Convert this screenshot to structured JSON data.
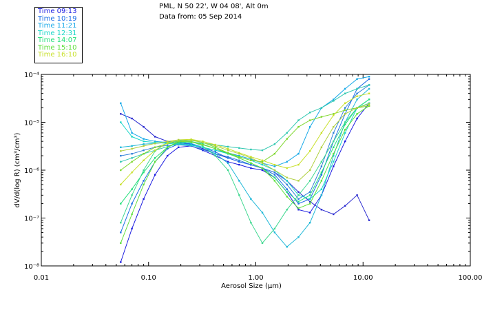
{
  "header": {
    "station": "PML, N 50 22', W 04 08', Alt 0m",
    "date": "Data from: 05 Sep 2014"
  },
  "legend": [
    {
      "label": "Time 09:13",
      "color": "#1a1ae0"
    },
    {
      "label": "Time 10:19",
      "color": "#1a6ee6"
    },
    {
      "label": "Time 11:21",
      "color": "#17a9e8"
    },
    {
      "label": "Time 12:31",
      "color": "#19d6c8"
    },
    {
      "label": "Time 14:07",
      "color": "#22e07a"
    },
    {
      "label": "Time 15:10",
      "color": "#5fe03c"
    },
    {
      "label": "Time 16:10",
      "color": "#c8e02a"
    }
  ],
  "chart_data": {
    "type": "line",
    "xscale": "log",
    "yscale": "log",
    "xlabel": "Aerosol Size (µm)",
    "ylabel": "dV/d(log R) (cm³/cm³)",
    "xlim": [
      0.01,
      100
    ],
    "ylim": [
      1e-08,
      0.0001
    ],
    "xticks": [
      {
        "value": 0.01,
        "label": "0.01"
      },
      {
        "value": 0.1,
        "label": "0.10"
      },
      {
        "value": 1,
        "label": "1.00"
      },
      {
        "value": 10,
        "label": "10.00"
      },
      {
        "value": 100,
        "label": "100.00"
      }
    ],
    "yticks": [
      {
        "value": 1e-08,
        "label": "10⁻⁸"
      },
      {
        "value": 1e-07,
        "label": "10⁻⁷"
      },
      {
        "value": 1e-06,
        "label": "10⁻⁶"
      },
      {
        "value": 1e-05,
        "label": "10⁻⁵"
      },
      {
        "value": 0.0001,
        "label": "10⁻⁴"
      }
    ],
    "x": [
      0.055,
      0.07,
      0.09,
      0.115,
      0.15,
      0.19,
      0.25,
      0.32,
      0.42,
      0.55,
      0.7,
      0.9,
      1.15,
      1.5,
      1.95,
      2.5,
      3.2,
      4.1,
      5.3,
      6.8,
      8.8,
      11.4
    ],
    "series": [
      {
        "name": "Time 09:13",
        "color": "#1a1ae0",
        "values": [
          1.2e-08,
          6e-08,
          2.5e-07,
          8e-07,
          2e-06,
          3e-06,
          3.2e-06,
          2.6e-06,
          2e-06,
          1.5e-06,
          1.3e-06,
          1.1e-06,
          1e-06,
          7e-07,
          3.5e-07,
          1.5e-07,
          1.3e-07,
          3e-07,
          1.2e-06,
          4e-06,
          1.2e-05,
          2.5e-05
        ]
      },
      {
        "name": "Time 09:13",
        "color": "#2a2ad0",
        "values": [
          1.5e-05,
          1.2e-05,
          8e-06,
          5e-06,
          4e-06,
          3.8e-06,
          3.5e-06,
          2.8e-06,
          2.2e-06,
          1.8e-06,
          1.5e-06,
          1.3e-06,
          1.1e-06,
          9e-07,
          6e-07,
          3.5e-07,
          2.2e-07,
          1.5e-07,
          1.2e-07,
          1.8e-07,
          3e-07,
          9e-08
        ]
      },
      {
        "name": "Time 10:19",
        "color": "#1a6ee6",
        "values": [
          5e-08,
          2e-07,
          6e-07,
          1.5e-06,
          2.8e-06,
          3.5e-06,
          3.6e-06,
          3e-06,
          2.4e-06,
          1.8e-06,
          1.5e-06,
          1.3e-06,
          1.1e-06,
          8e-07,
          4e-07,
          2e-07,
          2.5e-07,
          8e-07,
          4e-06,
          1.5e-05,
          5e-05,
          8e-05
        ]
      },
      {
        "name": "Time 10:19",
        "color": "#2f80d8",
        "values": [
          2e-06,
          2.2e-06,
          2.6e-06,
          3e-06,
          3.3e-06,
          3.4e-06,
          3.2e-06,
          2.7e-06,
          2.2e-06,
          1.9e-06,
          1.6e-06,
          1.3e-06,
          1.1e-06,
          9e-07,
          5e-07,
          2.5e-07,
          3.5e-07,
          1.2e-06,
          6e-06,
          2e-05,
          4e-05,
          6e-05
        ]
      },
      {
        "name": "Time 11:21",
        "color": "#17a9e8",
        "values": [
          2.5e-05,
          6e-06,
          4.5e-06,
          4e-06,
          3.8e-06,
          3.6e-06,
          3.4e-06,
          3e-06,
          2.6e-06,
          2.3e-06,
          2e-06,
          1.7e-06,
          1.4e-06,
          1.2e-06,
          1.5e-06,
          2.2e-06,
          8e-06,
          2e-05,
          3e-05,
          5e-05,
          8e-05,
          9e-05
        ]
      },
      {
        "name": "Time 11:21",
        "color": "#20b8d8",
        "values": [
          3e-06,
          3.2e-06,
          3.5e-06,
          3.6e-06,
          3.8e-06,
          4e-06,
          3.6e-06,
          3e-06,
          2.2e-06,
          1.4e-06,
          6e-07,
          2.5e-07,
          1.3e-07,
          5e-08,
          2.5e-08,
          4e-08,
          8e-08,
          3e-07,
          2e-06,
          1e-05,
          3e-05,
          5e-05
        ]
      },
      {
        "name": "Time 12:31",
        "color": "#19d6c8",
        "values": [
          1e-05,
          5e-06,
          4e-06,
          3.8e-06,
          3.6e-06,
          3.5e-06,
          3.3e-06,
          3e-06,
          2.6e-06,
          2.2e-06,
          1.9e-06,
          1.6e-06,
          1.3e-06,
          1e-06,
          6e-07,
          3e-07,
          2.5e-07,
          4e-07,
          1.5e-06,
          6e-06,
          2e-05,
          3e-05
        ]
      },
      {
        "name": "Time 12:31",
        "color": "#30c8b0",
        "values": [
          1.5e-06,
          1.8e-06,
          2.2e-06,
          2.6e-06,
          3.1e-06,
          3.6e-06,
          3.8e-06,
          3.7e-06,
          3.4e-06,
          3.1e-06,
          2.9e-06,
          2.7e-06,
          2.6e-06,
          3.5e-06,
          6e-06,
          1.1e-05,
          1.6e-05,
          2e-05,
          2.8e-05,
          4e-05,
          5e-05,
          6e-05
        ]
      },
      {
        "name": "Time 14:07",
        "color": "#22e07a",
        "values": [
          2e-07,
          4e-07,
          9e-07,
          1.8e-06,
          3e-06,
          3.8e-06,
          4e-06,
          3.5e-06,
          2.8e-06,
          2.2e-06,
          1.8e-06,
          1.4e-06,
          1.1e-06,
          7e-07,
          3.5e-07,
          2.2e-07,
          3e-07,
          9e-07,
          3e-06,
          9e-06,
          2e-05,
          3e-05
        ]
      },
      {
        "name": "Time 14:07",
        "color": "#3fd890",
        "values": [
          8e-08,
          3e-07,
          1e-06,
          2.5e-06,
          3.8e-06,
          4.2e-06,
          4e-06,
          3.2e-06,
          2e-06,
          1e-06,
          3e-07,
          8e-08,
          3e-08,
          6e-08,
          1.5e-07,
          3e-07,
          6e-07,
          1.5e-06,
          4e-06,
          1e-05,
          2e-05,
          2.5e-05
        ]
      },
      {
        "name": "Time 15:10",
        "color": "#5fe03c",
        "values": [
          3e-08,
          1.2e-07,
          5e-07,
          1.5e-06,
          3e-06,
          4e-06,
          4.3e-06,
          3.8e-06,
          3e-06,
          2.3e-06,
          1.8e-06,
          1.4e-06,
          1.1e-06,
          6e-07,
          2.8e-07,
          1.6e-07,
          2e-07,
          6e-07,
          2.2e-06,
          7e-06,
          1.5e-05,
          2.2e-05
        ]
      },
      {
        "name": "Time 15:10",
        "color": "#80d830",
        "values": [
          1e-06,
          1.5e-06,
          2.2e-06,
          3e-06,
          3.6e-06,
          4e-06,
          3.9e-06,
          3.4e-06,
          2.8e-06,
          2.3e-06,
          1.9e-06,
          1.6e-06,
          1.5e-06,
          2.2e-06,
          4.5e-06,
          8e-06,
          1.1e-05,
          1.3e-05,
          1.5e-05,
          1.8e-05,
          2e-05,
          2.2e-05
        ]
      },
      {
        "name": "Time 16:10",
        "color": "#c8e02a",
        "values": [
          5e-07,
          9e-07,
          1.6e-06,
          2.6e-06,
          3.7e-06,
          4.3e-06,
          4.4e-06,
          4e-06,
          3.4e-06,
          2.8e-06,
          2.3e-06,
          1.9e-06,
          1.6e-06,
          1.3e-06,
          1.1e-06,
          1.3e-06,
          2.5e-06,
          6e-06,
          1.4e-05,
          2.5e-05,
          3.5e-05,
          4e-05
        ]
      },
      {
        "name": "Time 16:10",
        "color": "#b0d040",
        "values": [
          2.5e-06,
          2.8e-06,
          3.2e-06,
          3.6e-06,
          4e-06,
          4.3e-06,
          4.2e-06,
          3.8e-06,
          3.2e-06,
          2.6e-06,
          2.2e-06,
          1.8e-06,
          1.4e-06,
          1e-06,
          7e-07,
          6e-07,
          1e-06,
          3e-06,
          8e-06,
          1.5e-05,
          2e-05,
          2.4e-05
        ]
      }
    ]
  }
}
